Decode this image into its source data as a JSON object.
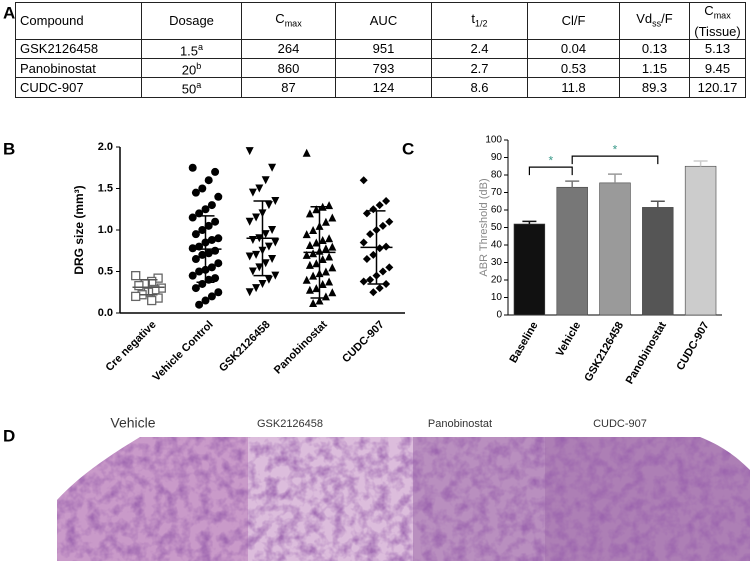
{
  "panel_labels": [
    "A",
    "B",
    "C",
    "D"
  ],
  "table": {
    "header": [
      "Compound",
      "Dosage",
      {
        "text": "C",
        "sub": "max"
      },
      "AUC",
      {
        "text": "t",
        "sub": "1/2"
      },
      "Cl/F",
      {
        "text": "Vd",
        "sub": "ss",
        "after": "/F"
      },
      {
        "text": "C",
        "sub": "max",
        "line2": "(Tissue)"
      }
    ],
    "rows": [
      [
        "GSK2126458",
        {
          "text": "1.5",
          "sup": "a"
        },
        "264",
        "951",
        "2.4",
        "0.04",
        "0.13",
        "5.13"
      ],
      [
        "Panobinostat",
        {
          "text": "20",
          "sup": "b"
        },
        "860",
        "793",
        "2.7",
        "0.53",
        "1.15",
        "9.45"
      ],
      [
        "CUDC-907",
        {
          "text": "50",
          "sup": "a"
        },
        "87",
        "124",
        "8.6",
        "11.8",
        "89.3",
        "120.17"
      ]
    ]
  },
  "chart_data": [
    {
      "type": "dot",
      "ylabel": "DRG size (mm³)",
      "categories": [
        "Cre negative",
        "Vehicle Control",
        "GSK2126458",
        "Panobinostat",
        "CUDC-907"
      ],
      "ylim": [
        0,
        2
      ],
      "yticks": [
        {
          "value": 0,
          "label": "0.0"
        },
        0.5,
        {
          "value": 1,
          "label": "1.0"
        },
        1.5,
        {
          "value": 2,
          "label": "2.0"
        }
      ],
      "groups": [
        {
          "marker": "open-square",
          "mean": 0.31,
          "sd": 0.09,
          "values": [
            0.45,
            0.42,
            0.38,
            0.35,
            0.33,
            0.3,
            0.28,
            0.25,
            0.22,
            0.2,
            0.18,
            0.15
          ]
        },
        {
          "marker": "circle",
          "mean": 0.77,
          "sd": 0.4,
          "values": [
            1.75,
            1.7,
            1.6,
            1.5,
            1.45,
            1.4,
            1.3,
            1.25,
            1.2,
            1.15,
            1.1,
            1.05,
            1.0,
            0.95,
            0.9,
            0.88,
            0.85,
            0.8,
            0.78,
            0.75,
            0.72,
            0.7,
            0.65,
            0.6,
            0.55,
            0.52,
            0.5,
            0.45,
            0.42,
            0.4,
            0.35,
            0.3,
            0.25,
            0.2,
            0.15,
            0.1
          ]
        },
        {
          "marker": "triangle-down",
          "mean": 0.9,
          "sd": 0.45,
          "values": [
            1.95,
            1.75,
            1.6,
            1.5,
            1.45,
            1.35,
            1.3,
            1.2,
            1.15,
            1.1,
            1.0,
            0.95,
            0.9,
            0.88,
            0.85,
            0.8,
            0.75,
            0.7,
            0.68,
            0.65,
            0.6,
            0.55,
            0.5,
            0.45,
            0.4,
            0.35,
            0.3,
            0.25
          ]
        },
        {
          "marker": "triangle-up",
          "mean": 0.73,
          "sd": 0.55,
          "values": [
            1.93,
            1.3,
            1.28,
            1.25,
            1.2,
            1.15,
            1.1,
            1.05,
            1.0,
            0.95,
            0.9,
            0.88,
            0.85,
            0.82,
            0.8,
            0.78,
            0.75,
            0.72,
            0.7,
            0.68,
            0.65,
            0.6,
            0.58,
            0.55,
            0.5,
            0.48,
            0.45,
            0.4,
            0.38,
            0.35,
            0.3,
            0.28,
            0.25,
            0.2,
            0.15,
            0.12
          ]
        },
        {
          "marker": "diamond",
          "mean": 0.79,
          "sd": 0.44,
          "values": [
            1.6,
            1.35,
            1.3,
            1.25,
            1.2,
            1.1,
            1.05,
            1.0,
            0.95,
            0.85,
            0.8,
            0.78,
            0.7,
            0.65,
            0.55,
            0.5,
            0.45,
            0.4,
            0.38,
            0.35,
            0.3,
            0.25
          ]
        }
      ]
    },
    {
      "type": "bar",
      "ylabel": "ABR Threshold (dB)",
      "categories": [
        "Baseline",
        "Vehicle",
        "GSK2126458",
        "Panobinostat",
        "CUDC-907"
      ],
      "values": [
        52,
        73,
        75.5,
        61.5,
        85
      ],
      "errors": [
        1.5,
        3.5,
        5,
        3.5,
        3
      ],
      "colors": [
        "#111111",
        "#777777",
        "#9a9a9a",
        "#555555",
        "#cccccc"
      ],
      "ylim": [
        0,
        100
      ],
      "yticks": [
        0,
        10,
        20,
        30,
        40,
        50,
        60,
        70,
        80,
        90,
        100
      ],
      "annotations": [
        {
          "text": "*",
          "between": [
            0,
            1
          ]
        },
        {
          "text": "*",
          "between": [
            1,
            3
          ]
        }
      ]
    }
  ],
  "histology": [
    "Vehicle",
    "GSK2126458",
    "Panobinostat",
    "CUDC-907"
  ]
}
